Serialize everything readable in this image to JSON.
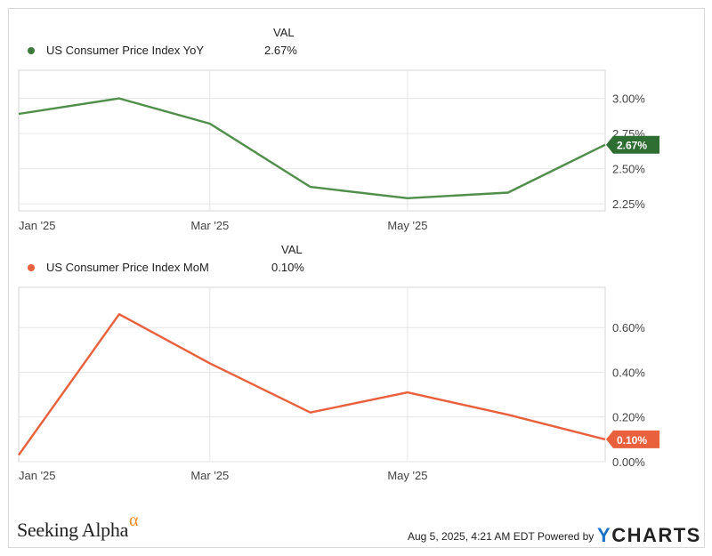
{
  "chart_data": [
    {
      "type": "line",
      "series": [
        {
          "name": "US Consumer Price Index YoY",
          "color": "#4f8f4a",
          "values": [
            2.89,
            3.0,
            2.82,
            2.37,
            2.29,
            2.33,
            2.67
          ]
        }
      ],
      "x": [
        "2025-01-01",
        "2025-02-01",
        "2025-03-01",
        "2025-04-01",
        "2025-05-01",
        "2025-06-01",
        "2025-07-01"
      ],
      "x_ticks": [
        "Jan '25",
        "Mar '25",
        "May '25"
      ],
      "y_ticks": [
        "2.25%",
        "2.50%",
        "2.75%",
        "3.00%"
      ],
      "ylim": [
        2.2,
        3.2
      ],
      "legend_header": "VAL",
      "legend_value": "2.67%",
      "end_label": "2.67%",
      "end_label_color": "#2e6e33",
      "grid": true
    },
    {
      "type": "line",
      "series": [
        {
          "name": "US Consumer Price Index MoM",
          "color": "#e8603c",
          "values": [
            0.03,
            0.66,
            0.44,
            0.22,
            0.31,
            0.21,
            0.1
          ]
        }
      ],
      "x": [
        "2025-01-01",
        "2025-02-01",
        "2025-03-01",
        "2025-04-01",
        "2025-05-01",
        "2025-06-01",
        "2025-07-01"
      ],
      "x_ticks": [
        "Jan '25",
        "Mar '25",
        "May '25"
      ],
      "y_ticks": [
        "0.00%",
        "0.20%",
        "0.40%",
        "0.60%"
      ],
      "ylim": [
        0.0,
        0.78
      ],
      "legend_header": "VAL",
      "legend_value": "0.10%",
      "end_label": "0.10%",
      "end_label_color": "#e8603c",
      "grid": true
    }
  ],
  "footer": {
    "brand_left": "Seeking Alpha",
    "brand_left_symbol": "α",
    "timestamp": "Aug 5, 2025, 4:21 AM EDT Powered by",
    "brand_right_y": "Y",
    "brand_right_rest": "CHARTS"
  }
}
